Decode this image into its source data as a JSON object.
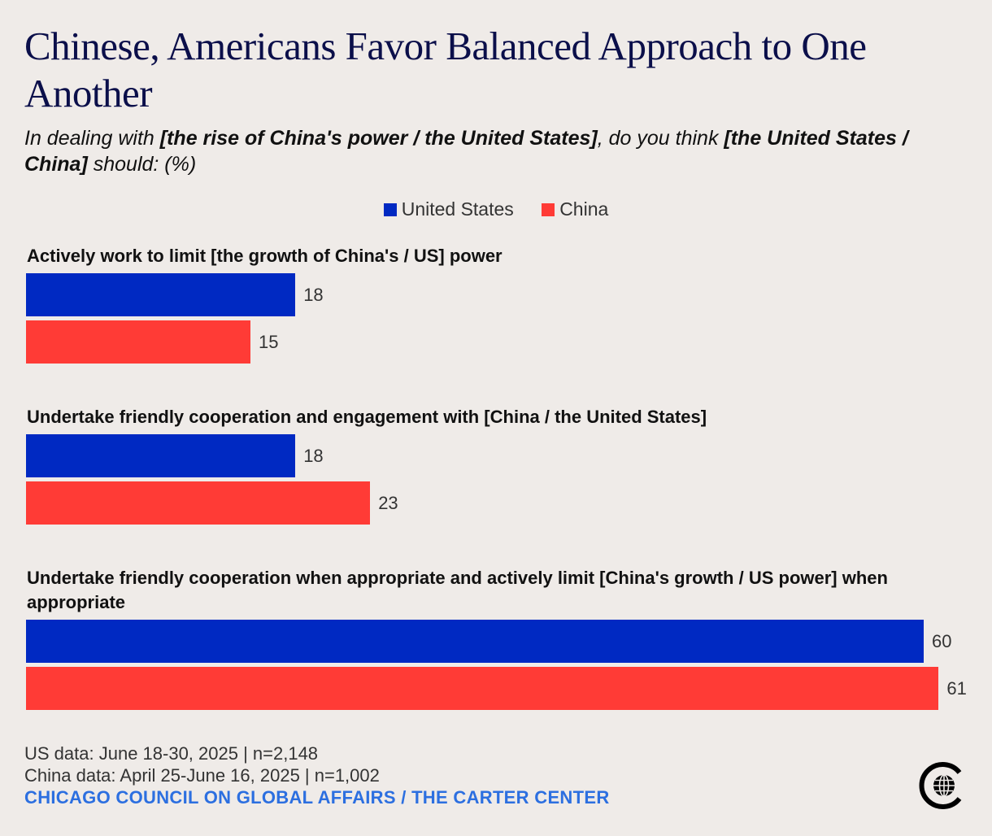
{
  "title": "Chinese, Americans Favor Balanced Approach to One Another",
  "subtitle": {
    "p1": "In dealing with ",
    "b1": "[the rise of China's power / the United States]",
    "p2": ", do you think ",
    "b2": "[the United States / China]",
    "p3": " should: (%)"
  },
  "legend": [
    {
      "label": "United States",
      "color": "#0029c2"
    },
    {
      "label": "China",
      "color": "#ff3b36"
    }
  ],
  "chart_data": {
    "type": "bar",
    "orientation": "horizontal",
    "categories": [
      "Actively work to limit [the growth of China's / US] power",
      "Undertake friendly cooperation and engagement with [China / the United States]",
      "Undertake friendly cooperation when appropriate and actively limit [China's growth / US power] when appropriate"
    ],
    "series": [
      {
        "name": "United States",
        "color": "#0029c2",
        "values": [
          18,
          18,
          60
        ]
      },
      {
        "name": "China",
        "color": "#ff3b36",
        "values": [
          15,
          23,
          61
        ]
      }
    ],
    "xlim": [
      0,
      66
    ],
    "grid": false,
    "legend_position": "top-center"
  },
  "footer": {
    "us_data": "US data: June 18-30, 2025 | n=2,148",
    "china_data": "China data: April 25-June 16, 2025 | n=1,002",
    "source": "CHICAGO COUNCIL ON GLOBAL AFFAIRS / THE CARTER CENTER"
  },
  "logo_icon": "chicago-council-globe-logo"
}
